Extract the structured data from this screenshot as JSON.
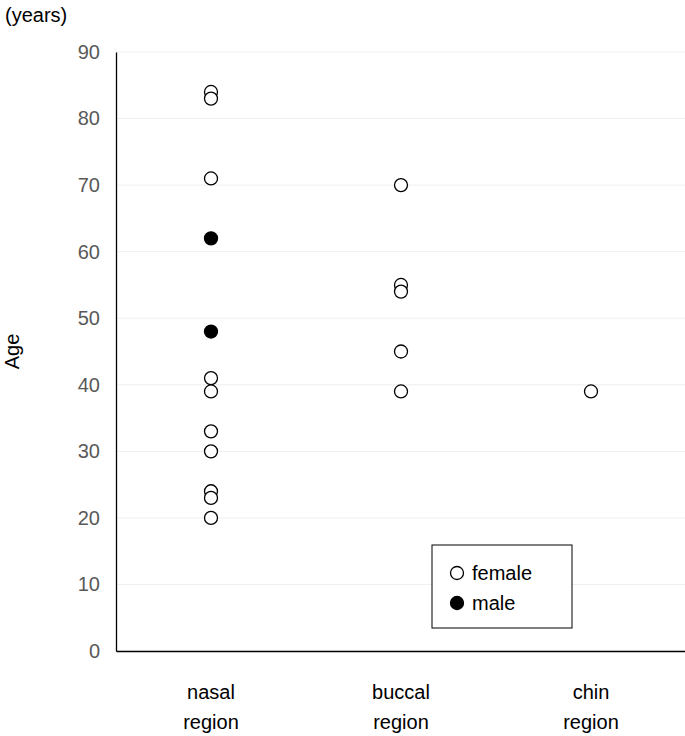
{
  "chart_data": {
    "type": "scatter",
    "y_label": "Age",
    "annotations": [
      "(years)"
    ],
    "categories": [
      "nasal region",
      "buccal region",
      "chin region"
    ],
    "series": [
      {
        "name": "female",
        "color": "#000000",
        "marker": "open circle",
        "x": [
          "nasal region",
          "nasal region",
          "nasal region",
          "nasal region",
          "nasal region",
          "nasal region",
          "nasal region",
          "nasal region",
          "nasal region",
          "nasal region",
          "buccal region",
          "buccal region",
          "buccal region",
          "buccal region",
          "buccal region",
          "chin region"
        ],
        "values": [
          84,
          83,
          71,
          41,
          39,
          33,
          30,
          24,
          23,
          20,
          70,
          55,
          54,
          45,
          39,
          39
        ]
      },
      {
        "name": "male",
        "color": "#000000",
        "marker": "filled circle",
        "x": [
          "nasal region",
          "nasal region"
        ],
        "values": [
          62,
          48
        ]
      }
    ],
    "ylim": [
      0,
      90
    ],
    "yticks": [
      0,
      10,
      20,
      30,
      40,
      50,
      60,
      70,
      80,
      90
    ],
    "grid": true,
    "legend": "lower right"
  }
}
